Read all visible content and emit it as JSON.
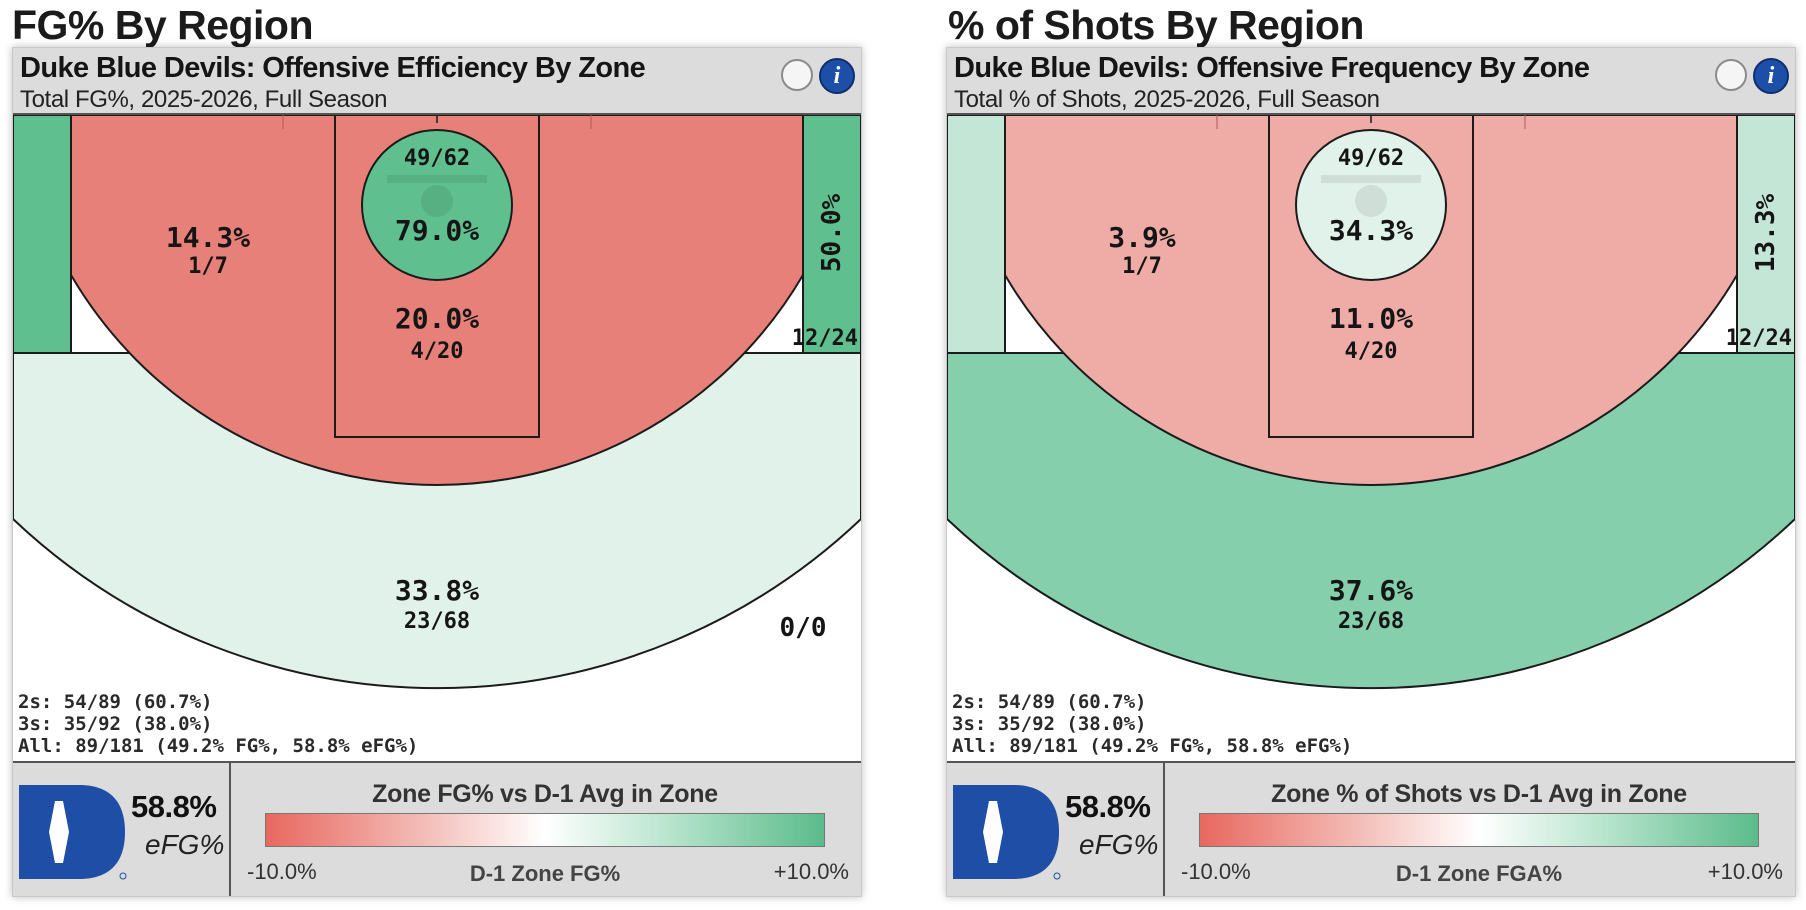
{
  "section_titles": {
    "left": "FG% By Region",
    "right": "% of Shots By Region"
  },
  "panels": [
    {
      "title": "Duke Blue Devils: Offensive Efficiency By Zone",
      "subtitle": "Total FG%, 2025-2026, Full Season",
      "info_label": "i",
      "zones": {
        "rim": {
          "pct": "79.0%",
          "made_att": "49/62",
          "color": "#5fbf8e"
        },
        "paint": {
          "pct": "20.0%",
          "made_att": "4/20",
          "color": "#e8807a"
        },
        "midrange": {
          "pct": "14.3%",
          "made_att": "1/7",
          "color": "#e8807a"
        },
        "corner_left": {
          "pct": "",
          "made_att": "",
          "color": "#5fbf8e"
        },
        "corner_right": {
          "pct": "50.0%",
          "made_att": "12/24",
          "color": "#5fbf8e"
        },
        "above_break": {
          "pct": "33.8%",
          "made_att": "23/68",
          "color": "#e1f2ea"
        },
        "deep": {
          "pct": "",
          "made_att": "0/0",
          "color": "#ffffff"
        }
      },
      "totals": {
        "twos": "2s: 54/89 (60.7%)",
        "threes": "3s: 35/92 (38.0%)",
        "all": "All: 89/181 (49.2% FG%, 58.8% eFG%)"
      },
      "efg_value": "58.8%",
      "efg_label": "eFG%",
      "legend": {
        "title": "Zone FG% vs D-1 Avg in Zone",
        "min": "-10.0%",
        "mid": "D-1 Zone FG%",
        "max": "+10.0%"
      }
    },
    {
      "title": "Duke Blue Devils: Offensive Frequency By Zone",
      "subtitle": "Total % of Shots, 2025-2026, Full Season",
      "info_label": "i",
      "zones": {
        "rim": {
          "pct": "34.3%",
          "made_att": "49/62",
          "color": "#e1f2ea"
        },
        "paint": {
          "pct": "11.0%",
          "made_att": "4/20",
          "color": "#efaca7"
        },
        "midrange": {
          "pct": "3.9%",
          "made_att": "1/7",
          "color": "#efaca7"
        },
        "corner_left": {
          "pct": "",
          "made_att": "",
          "color": "#c4e6d6"
        },
        "corner_right": {
          "pct": "13.3%",
          "made_att": "12/24",
          "color": "#c4e6d6"
        },
        "above_break": {
          "pct": "37.6%",
          "made_att": "23/68",
          "color": "#86cfac"
        },
        "deep": {
          "pct": "",
          "made_att": "",
          "color": "#ffffff"
        }
      },
      "totals": {
        "twos": "2s: 54/89 (60.7%)",
        "threes": "3s: 35/92 (38.0%)",
        "all": "All: 89/181 (49.2% FG%, 58.8% eFG%)"
      },
      "efg_value": "58.8%",
      "efg_label": "eFG%",
      "legend": {
        "title": "Zone % of Shots vs D-1 Avg in Zone",
        "min": "-10.0%",
        "mid": "D-1 Zone FGA%",
        "max": "+10.0%"
      }
    }
  ],
  "chart_data": [
    {
      "type": "heatmap",
      "title": "Duke Blue Devils: Offensive Efficiency By Zone",
      "subtitle": "Total FG%, 2025-2026, Full Season",
      "metric": "FG%",
      "zones": [
        {
          "zone": "rim",
          "fg_pct": 79.0,
          "made": 49,
          "att": 62
        },
        {
          "zone": "paint",
          "fg_pct": 20.0,
          "made": 4,
          "att": 20
        },
        {
          "zone": "midrange",
          "fg_pct": 14.3,
          "made": 1,
          "att": 7
        },
        {
          "zone": "corner 3 (right)",
          "fg_pct": 50.0,
          "made": 12,
          "att": 24
        },
        {
          "zone": "above-break 3",
          "fg_pct": 33.8,
          "made": 23,
          "att": 68
        },
        {
          "zone": "deep",
          "fg_pct": null,
          "made": 0,
          "att": 0
        }
      ],
      "totals": {
        "twos": [
          54,
          89,
          60.7
        ],
        "threes": [
          35,
          92,
          38.0
        ],
        "all": [
          89,
          181,
          49.2
        ],
        "efg": 58.8
      },
      "legend_range": [
        -10.0,
        10.0
      ]
    },
    {
      "type": "heatmap",
      "title": "Duke Blue Devils: Offensive Frequency By Zone",
      "subtitle": "Total % of Shots, 2025-2026, Full Season",
      "metric": "% of Shots",
      "zones": [
        {
          "zone": "rim",
          "shot_pct": 34.3,
          "made": 49,
          "att": 62
        },
        {
          "zone": "paint",
          "shot_pct": 11.0,
          "made": 4,
          "att": 20
        },
        {
          "zone": "midrange",
          "shot_pct": 3.9,
          "made": 1,
          "att": 7
        },
        {
          "zone": "corner 3 (right)",
          "shot_pct": 13.3,
          "made": 12,
          "att": 24
        },
        {
          "zone": "above-break 3",
          "shot_pct": 37.6,
          "made": 23,
          "att": 68
        }
      ],
      "totals": {
        "twos": [
          54,
          89,
          60.7
        ],
        "threes": [
          35,
          92,
          38.0
        ],
        "all": [
          89,
          181,
          49.2
        ],
        "efg": 58.8
      },
      "legend_range": [
        -10.0,
        10.0
      ]
    }
  ]
}
